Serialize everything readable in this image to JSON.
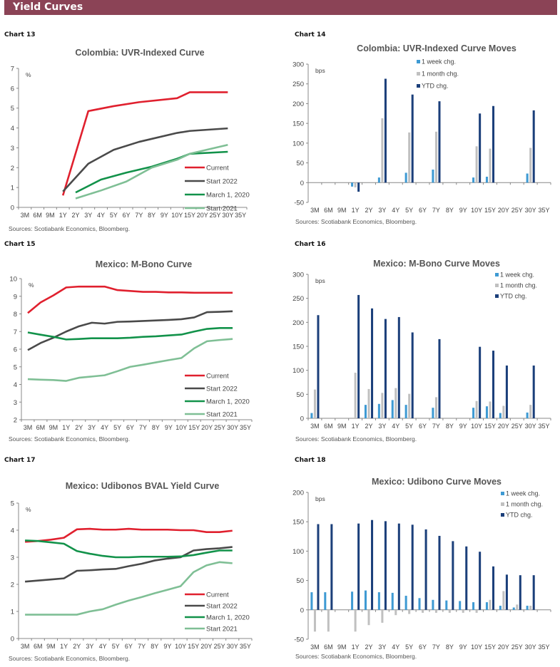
{
  "page": {
    "section_title": "Yield Curves",
    "header_color": "#8b4356"
  },
  "colors": {
    "current": "#e0202e",
    "start_2022": "#4a4a4a",
    "march_2020": "#12924a",
    "start_2021": "#7fbf95",
    "week": "#3e9ad3",
    "month": "#c0c0c0",
    "ytd": "#1b3f7a"
  },
  "chart_data": [
    {
      "id": "chart13",
      "label": "Chart 13",
      "type": "line",
      "title": "Colombia: UVR-Indexed Curve",
      "ylabel": "%",
      "xlabel": "",
      "ylim": [
        0,
        7
      ],
      "yticks": [
        0,
        1,
        2,
        3,
        4,
        5,
        6,
        7
      ],
      "categories": [
        "3M",
        "6M",
        "9M",
        "1Y",
        "2Y",
        "3Y",
        "4Y",
        "5Y",
        "6Y",
        "7Y",
        "8Y",
        "9Y",
        "10Y",
        "15Y",
        "20Y",
        "25Y",
        "30Y",
        "35Y"
      ],
      "legend_position": "bottom-right",
      "series": [
        {
          "name": "Current",
          "color_key": "current",
          "values": [
            null,
            null,
            null,
            0.6,
            null,
            4.85,
            null,
            5.1,
            null,
            5.3,
            null,
            null,
            5.5,
            5.8,
            null,
            null,
            5.8,
            null
          ]
        },
        {
          "name": "Start 2022",
          "color_key": "start_2022",
          "values": [
            null,
            null,
            null,
            0.8,
            null,
            2.2,
            null,
            2.9,
            null,
            3.3,
            null,
            null,
            3.75,
            3.85,
            null,
            null,
            3.98,
            null
          ]
        },
        {
          "name": "March 1, 2020",
          "color_key": "march_2020",
          "values": [
            null,
            null,
            null,
            null,
            0.75,
            null,
            1.4,
            null,
            1.75,
            null,
            2.05,
            null,
            2.45,
            2.7,
            null,
            null,
            2.8,
            null
          ]
        },
        {
          "name": "Start 2021",
          "color_key": "start_2021",
          "values": [
            null,
            null,
            null,
            null,
            0.45,
            null,
            0.85,
            null,
            1.3,
            null,
            2.0,
            null,
            2.4,
            2.7,
            null,
            null,
            3.15,
            null
          ]
        }
      ],
      "source": "Sources: Scotiabank Economics, Bloomberg."
    },
    {
      "id": "chart14",
      "label": "Chart 14",
      "type": "bar",
      "title": "Colombia: UVR-Indexed Curve Moves",
      "ylabel": "bps",
      "xlabel": "",
      "ylim": [
        -50,
        300
      ],
      "yticks": [
        -50,
        0,
        50,
        100,
        150,
        200,
        250,
        300
      ],
      "categories": [
        "3M",
        "6M",
        "9M",
        "1Y",
        "2Y",
        "3Y",
        "4Y",
        "5Y",
        "6Y",
        "7Y",
        "8Y",
        "9Y",
        "10Y",
        "15Y",
        "20Y",
        "25Y",
        "30Y",
        "35Y"
      ],
      "legend_position": "top-center",
      "series": [
        {
          "name": "1 week chg.",
          "color_key": "week",
          "values": [
            null,
            null,
            null,
            -10,
            null,
            13,
            null,
            25,
            null,
            33,
            null,
            null,
            13,
            15,
            null,
            null,
            23,
            null
          ]
        },
        {
          "name": "1 month chg.",
          "color_key": "month",
          "values": [
            null,
            null,
            null,
            -12,
            null,
            163,
            null,
            127,
            null,
            129,
            null,
            null,
            92,
            86,
            null,
            null,
            88,
            null
          ]
        },
        {
          "name": "YTD chg.",
          "color_key": "ytd",
          "values": [
            null,
            null,
            null,
            -23,
            null,
            263,
            null,
            223,
            null,
            206,
            null,
            null,
            175,
            194,
            null,
            null,
            183,
            null
          ]
        }
      ],
      "source": "Sources: Scotiabank Economics, Bloomberg."
    },
    {
      "id": "chart15",
      "label": "Chart 15",
      "type": "line",
      "title": "Mexico: M-Bono Curve",
      "ylabel": "%",
      "xlabel": "",
      "ylim": [
        2,
        10
      ],
      "yticks": [
        2,
        3,
        4,
        5,
        6,
        7,
        8,
        9,
        10
      ],
      "categories": [
        "3M",
        "6M",
        "9M",
        "1Y",
        "2Y",
        "3Y",
        "4Y",
        "5Y",
        "6Y",
        "7Y",
        "8Y",
        "9Y",
        "10Y",
        "15Y",
        "20Y",
        "25Y",
        "30Y",
        "35Y"
      ],
      "legend_position": "bottom-right",
      "series": [
        {
          "name": "Current",
          "color_key": "current",
          "values": [
            8.05,
            8.65,
            9.05,
            9.5,
            9.55,
            9.55,
            9.55,
            9.35,
            9.3,
            9.25,
            9.25,
            9.22,
            9.22,
            9.2,
            9.2,
            9.2,
            9.2,
            null
          ]
        },
        {
          "name": "Start 2022",
          "color_key": "start_2022",
          "values": [
            5.95,
            6.35,
            6.65,
            7.0,
            7.3,
            7.5,
            7.45,
            7.55,
            7.57,
            7.6,
            7.63,
            7.66,
            7.7,
            7.8,
            8.1,
            8.12,
            8.15,
            null
          ]
        },
        {
          "name": "March 1, 2020",
          "color_key": "march_2020",
          "values": [
            6.95,
            6.82,
            6.7,
            6.55,
            6.58,
            6.62,
            6.62,
            6.62,
            6.65,
            6.7,
            6.73,
            6.78,
            6.83,
            7.0,
            7.15,
            7.2,
            7.2,
            null
          ]
        },
        {
          "name": "Start 2021",
          "color_key": "start_2021",
          "values": [
            4.3,
            4.27,
            4.25,
            4.2,
            4.38,
            4.45,
            4.52,
            4.75,
            5.0,
            5.12,
            5.25,
            5.38,
            5.5,
            6.05,
            6.45,
            6.52,
            6.58,
            null
          ]
        }
      ],
      "source": "Sources: Scotiabank Economics, Bloomberg."
    },
    {
      "id": "chart16",
      "label": "Chart 16",
      "type": "bar",
      "title": "Mexico: M-Bono Curve Moves",
      "ylabel": "bps",
      "xlabel": "",
      "ylim": [
        0,
        300
      ],
      "yticks": [
        0,
        50,
        100,
        150,
        200,
        250,
        300
      ],
      "categories": [
        "3M",
        "6M",
        "9M",
        "1Y",
        "2Y",
        "3Y",
        "4Y",
        "5Y",
        "6Y",
        "7Y",
        "8Y",
        "9Y",
        "10Y",
        "15Y",
        "20Y",
        "25Y",
        "30Y",
        "35Y"
      ],
      "legend_position": "top-right",
      "series": [
        {
          "name": "1 week chg.",
          "color_key": "week",
          "values": [
            11,
            null,
            null,
            null,
            28,
            30,
            38,
            28,
            null,
            22,
            null,
            null,
            22,
            25,
            11,
            null,
            12,
            null
          ]
        },
        {
          "name": "1 month chg.",
          "color_key": "month",
          "values": [
            60,
            null,
            null,
            95,
            61,
            53,
            63,
            51,
            null,
            44,
            null,
            null,
            36,
            35,
            26,
            null,
            28,
            null
          ]
        },
        {
          "name": "YTD chg.",
          "color_key": "ytd",
          "values": [
            215,
            null,
            null,
            257,
            229,
            207,
            211,
            179,
            null,
            165,
            null,
            null,
            149,
            141,
            110,
            null,
            110,
            null
          ]
        }
      ],
      "source": "Sources: Scotiabank Economics, Bloomberg."
    },
    {
      "id": "chart17",
      "label": "Chart 17",
      "type": "line",
      "title": "Mexico: Udibonos BVAL Yield Curve",
      "ylabel": "%",
      "xlabel": "",
      "ylim": [
        0,
        5
      ],
      "yticks": [
        0,
        1,
        2,
        3,
        4,
        5
      ],
      "categories": [
        "3M",
        "6M",
        "9M",
        "1Y",
        "2Y",
        "3Y",
        "4Y",
        "5Y",
        "6Y",
        "7Y",
        "8Y",
        "9Y",
        "10Y",
        "15Y",
        "20Y",
        "25Y",
        "30Y",
        "35Y"
      ],
      "legend_position": "bottom-right",
      "series": [
        {
          "name": "Current",
          "color_key": "current",
          "values": [
            3.57,
            3.6,
            3.65,
            3.72,
            4.03,
            4.05,
            4.02,
            4.02,
            4.05,
            4.02,
            4.02,
            4.02,
            4.0,
            4.0,
            3.93,
            3.93,
            3.98,
            null
          ]
        },
        {
          "name": "Start 2022",
          "color_key": "start_2022",
          "values": [
            2.1,
            2.14,
            2.18,
            2.22,
            2.5,
            2.52,
            2.55,
            2.57,
            2.67,
            2.76,
            2.88,
            2.95,
            3.0,
            3.25,
            3.3,
            3.33,
            3.38,
            null
          ]
        },
        {
          "name": "March 1, 2020",
          "color_key": "march_2020",
          "values": [
            3.62,
            3.6,
            3.55,
            3.5,
            3.23,
            3.13,
            3.05,
            3.0,
            3.0,
            3.02,
            3.02,
            3.02,
            3.03,
            3.08,
            3.17,
            3.25,
            3.25,
            null
          ]
        },
        {
          "name": "Start 2021",
          "color_key": "start_2021",
          "values": [
            0.88,
            0.88,
            0.88,
            0.88,
            0.88,
            1.0,
            1.08,
            1.25,
            1.4,
            1.53,
            1.67,
            1.8,
            1.93,
            2.45,
            2.7,
            2.82,
            2.78,
            null
          ]
        }
      ],
      "source": "Sources: Scotiabank Economics, Bloomberg."
    },
    {
      "id": "chart18",
      "label": "Chart 18",
      "type": "bar",
      "title": "Mexico: Udibono Curve Moves",
      "ylabel": "bps",
      "xlabel": "",
      "ylim": [
        -50,
        200
      ],
      "yticks": [
        -50,
        0,
        50,
        100,
        150,
        200
      ],
      "categories": [
        "3M",
        "6M",
        "9M",
        "1Y",
        "2Y",
        "3Y",
        "4Y",
        "5Y",
        "6Y",
        "7Y",
        "8Y",
        "9Y",
        "10Y",
        "15Y",
        "20Y",
        "25Y",
        "30Y",
        "35Y"
      ],
      "legend_position": "top-right",
      "series": [
        {
          "name": "1 week chg.",
          "color_key": "week",
          "values": [
            30,
            30,
            null,
            31,
            33,
            30,
            29,
            24,
            20,
            17,
            16,
            15,
            13,
            13,
            7,
            4,
            7,
            null
          ]
        },
        {
          "name": "1 month chg.",
          "color_key": "month",
          "values": [
            -37,
            -37,
            null,
            -37,
            -26,
            -22,
            -9,
            -7,
            -5,
            -5,
            -5,
            -5,
            -5,
            17,
            32,
            9,
            7,
            null
          ]
        },
        {
          "name": "YTD chg.",
          "color_key": "ytd",
          "values": [
            146,
            146,
            null,
            147,
            153,
            151,
            147,
            145,
            137,
            126,
            117,
            108,
            99,
            74,
            60,
            59,
            59,
            null
          ]
        }
      ],
      "source": "Sources: Scotiabank Economics, Bloomberg."
    }
  ]
}
